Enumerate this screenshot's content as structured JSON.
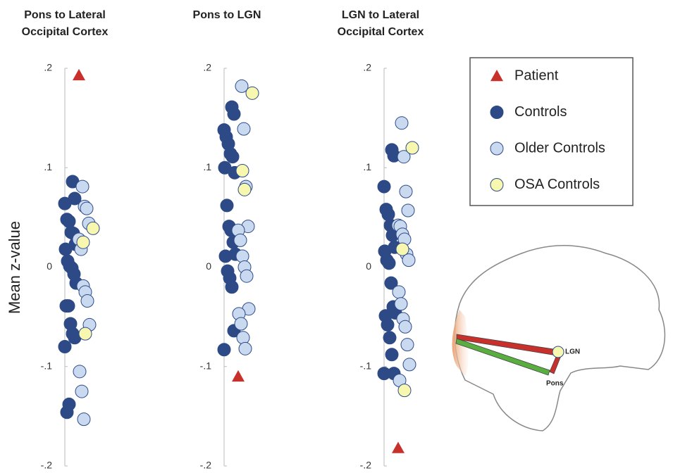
{
  "chart_data": [
    {
      "type": "strip",
      "title": [
        "Pons to Lateral",
        "Occipital Cortex"
      ],
      "ylabel": "Mean z-value",
      "ylim": [
        -0.2,
        0.2
      ],
      "yticks": [
        {
          "value": 0.2,
          "label": ".2"
        },
        {
          "value": 0.1,
          "label": ".1"
        },
        0,
        {
          "value": -0.1,
          "label": "-.1"
        },
        {
          "value": -0.2,
          "label": "-.2"
        }
      ],
      "series": [
        {
          "name": "Patient",
          "marker": "triangle",
          "color": "#c8312b",
          "values": [
            0.193
          ]
        },
        {
          "name": "Controls",
          "marker": "circle",
          "color": "#2d4a87",
          "values": [
            0.086,
            0.069,
            0.064,
            0.048,
            0.046,
            0.035,
            0.034,
            0.023,
            0.018,
            0.006,
            0.001,
            -0.001,
            -0.007,
            -0.016,
            -0.039,
            -0.039,
            -0.057,
            -0.067,
            -0.071,
            -0.08,
            -0.146,
            -0.138
          ]
        },
        {
          "name": "Older Controls",
          "marker": "circle",
          "color": "#c9daf0",
          "values": [
            0.081,
            0.061,
            0.059,
            0.044,
            0.028,
            0.018,
            -0.019,
            -0.025,
            -0.034,
            -0.058,
            -0.105,
            -0.125,
            -0.153
          ]
        },
        {
          "name": "OSA Controls",
          "marker": "circle",
          "color": "#f8f7b0",
          "values": [
            0.039,
            0.025,
            -0.067
          ]
        }
      ]
    },
    {
      "type": "strip",
      "title": [
        "Pons to LGN"
      ],
      "ylim": [
        -0.2,
        0.2
      ],
      "yticks": [
        {
          "value": 0.2,
          "label": ".2"
        },
        {
          "value": 0.1,
          "label": ".1"
        },
        0,
        {
          "value": -0.1,
          "label": "-.1"
        },
        {
          "value": -0.2,
          "label": "-.2"
        }
      ],
      "series": [
        {
          "marker": "triangle",
          "color": "#c8312b",
          "values": [
            -0.11
          ]
        },
        {
          "marker": "circle",
          "color": "#2d4a87",
          "values": [
            0.161,
            0.154,
            0.138,
            0.131,
            0.124,
            0.114,
            0.111,
            0.095,
            0.1,
            0.062,
            0.041,
            0.037,
            0.025,
            0.013,
            0.011,
            -0.004,
            -0.011,
            -0.02,
            -0.064,
            -0.083
          ]
        },
        {
          "marker": "circle",
          "color": "#c9daf0",
          "values": [
            0.182,
            0.139,
            0.081,
            0.041,
            0.037,
            0.027,
            0.011,
            0,
            -0.009,
            -0.042,
            -0.047,
            -0.057,
            -0.071,
            -0.082
          ]
        },
        {
          "marker": "circle",
          "color": "#f8f7b0",
          "values": [
            0.175,
            0.097,
            0.078
          ]
        }
      ]
    },
    {
      "type": "strip",
      "title": [
        "LGN to Lateral",
        "Occipital Cortex"
      ],
      "ylim": [
        -0.2,
        0.2
      ],
      "yticks": [
        {
          "value": 0.2,
          "label": ".2"
        },
        {
          "value": 0.1,
          "label": ".1"
        },
        0,
        {
          "value": -0.1,
          "label": "-.1"
        },
        {
          "value": -0.2,
          "label": "-.2"
        }
      ],
      "series": [
        {
          "marker": "triangle",
          "color": "#c8312b",
          "values": [
            -0.182
          ]
        },
        {
          "marker": "circle",
          "color": "#2d4a87",
          "values": [
            0.118,
            0.112,
            0.081,
            0.058,
            0.053,
            0.042,
            0.032,
            0.02,
            0.016,
            0.007,
            0.004,
            -0.016,
            -0.04,
            -0.046,
            -0.049,
            -0.058,
            -0.071,
            -0.088,
            -0.107,
            -0.107
          ]
        },
        {
          "marker": "circle",
          "color": "#c9daf0",
          "values": [
            0.145,
            0.111,
            0.076,
            0.057,
            0.042,
            0.041,
            0.033,
            0.028,
            0.013,
            0.007,
            -0.025,
            -0.037,
            -0.052,
            -0.06,
            -0.078,
            -0.098,
            -0.114
          ]
        },
        {
          "marker": "circle",
          "color": "#f8f7b0",
          "values": [
            0.12,
            0.018,
            -0.124
          ]
        }
      ]
    }
  ],
  "diagram": {
    "labels": [
      "LGN",
      "Pons"
    ]
  }
}
